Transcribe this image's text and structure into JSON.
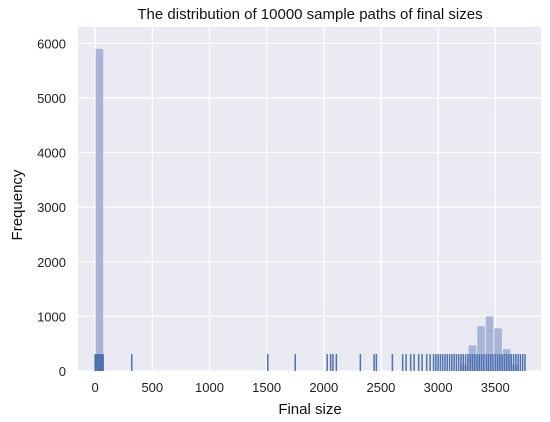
{
  "chart_data": {
    "type": "bar",
    "title": "The distribution of 10000 sample paths of final sizes",
    "xlabel": "Final size",
    "ylabel": "Frequency",
    "xlim": [
      -150,
      3900
    ],
    "ylim": [
      0,
      6300
    ],
    "x_ticks": [
      0,
      500,
      1000,
      1500,
      2000,
      2500,
      3000,
      3500
    ],
    "y_ticks": [
      0,
      1000,
      2000,
      3000,
      4000,
      5000,
      6000
    ],
    "grid": true,
    "bin_width": 75,
    "series": [
      {
        "kind": "histogram",
        "bin_centers": [
          37.5,
          3225,
          3300,
          3375,
          3450,
          3525,
          3600,
          3675
        ],
        "values": [
          5900,
          120,
          470,
          820,
          1000,
          780,
          400,
          120
        ]
      },
      {
        "kind": "rug",
        "height": 310,
        "x": [
          0,
          10,
          20,
          30,
          40,
          50,
          60,
          70,
          320,
          1510,
          1750,
          2030,
          2060,
          2080,
          2110,
          2320,
          2440,
          2460,
          2600,
          2690,
          2720,
          2760,
          2790,
          2830,
          2860,
          2900,
          2930,
          2960,
          2980,
          3000,
          3020,
          3040,
          3060,
          3080,
          3100,
          3120,
          3140,
          3160,
          3180,
          3200,
          3220,
          3240,
          3260,
          3280,
          3300,
          3320,
          3340,
          3360,
          3380,
          3400,
          3420,
          3440,
          3460,
          3480,
          3500,
          3520,
          3540,
          3560,
          3580,
          3600,
          3620,
          3640,
          3660,
          3680,
          3700,
          3720,
          3740,
          3760
        ]
      }
    ],
    "colors": {
      "background": "#eaeaf2",
      "grid": "#ffffff",
      "histogram_bar": "#a7b5d9",
      "rug": "#4c72b0"
    }
  }
}
